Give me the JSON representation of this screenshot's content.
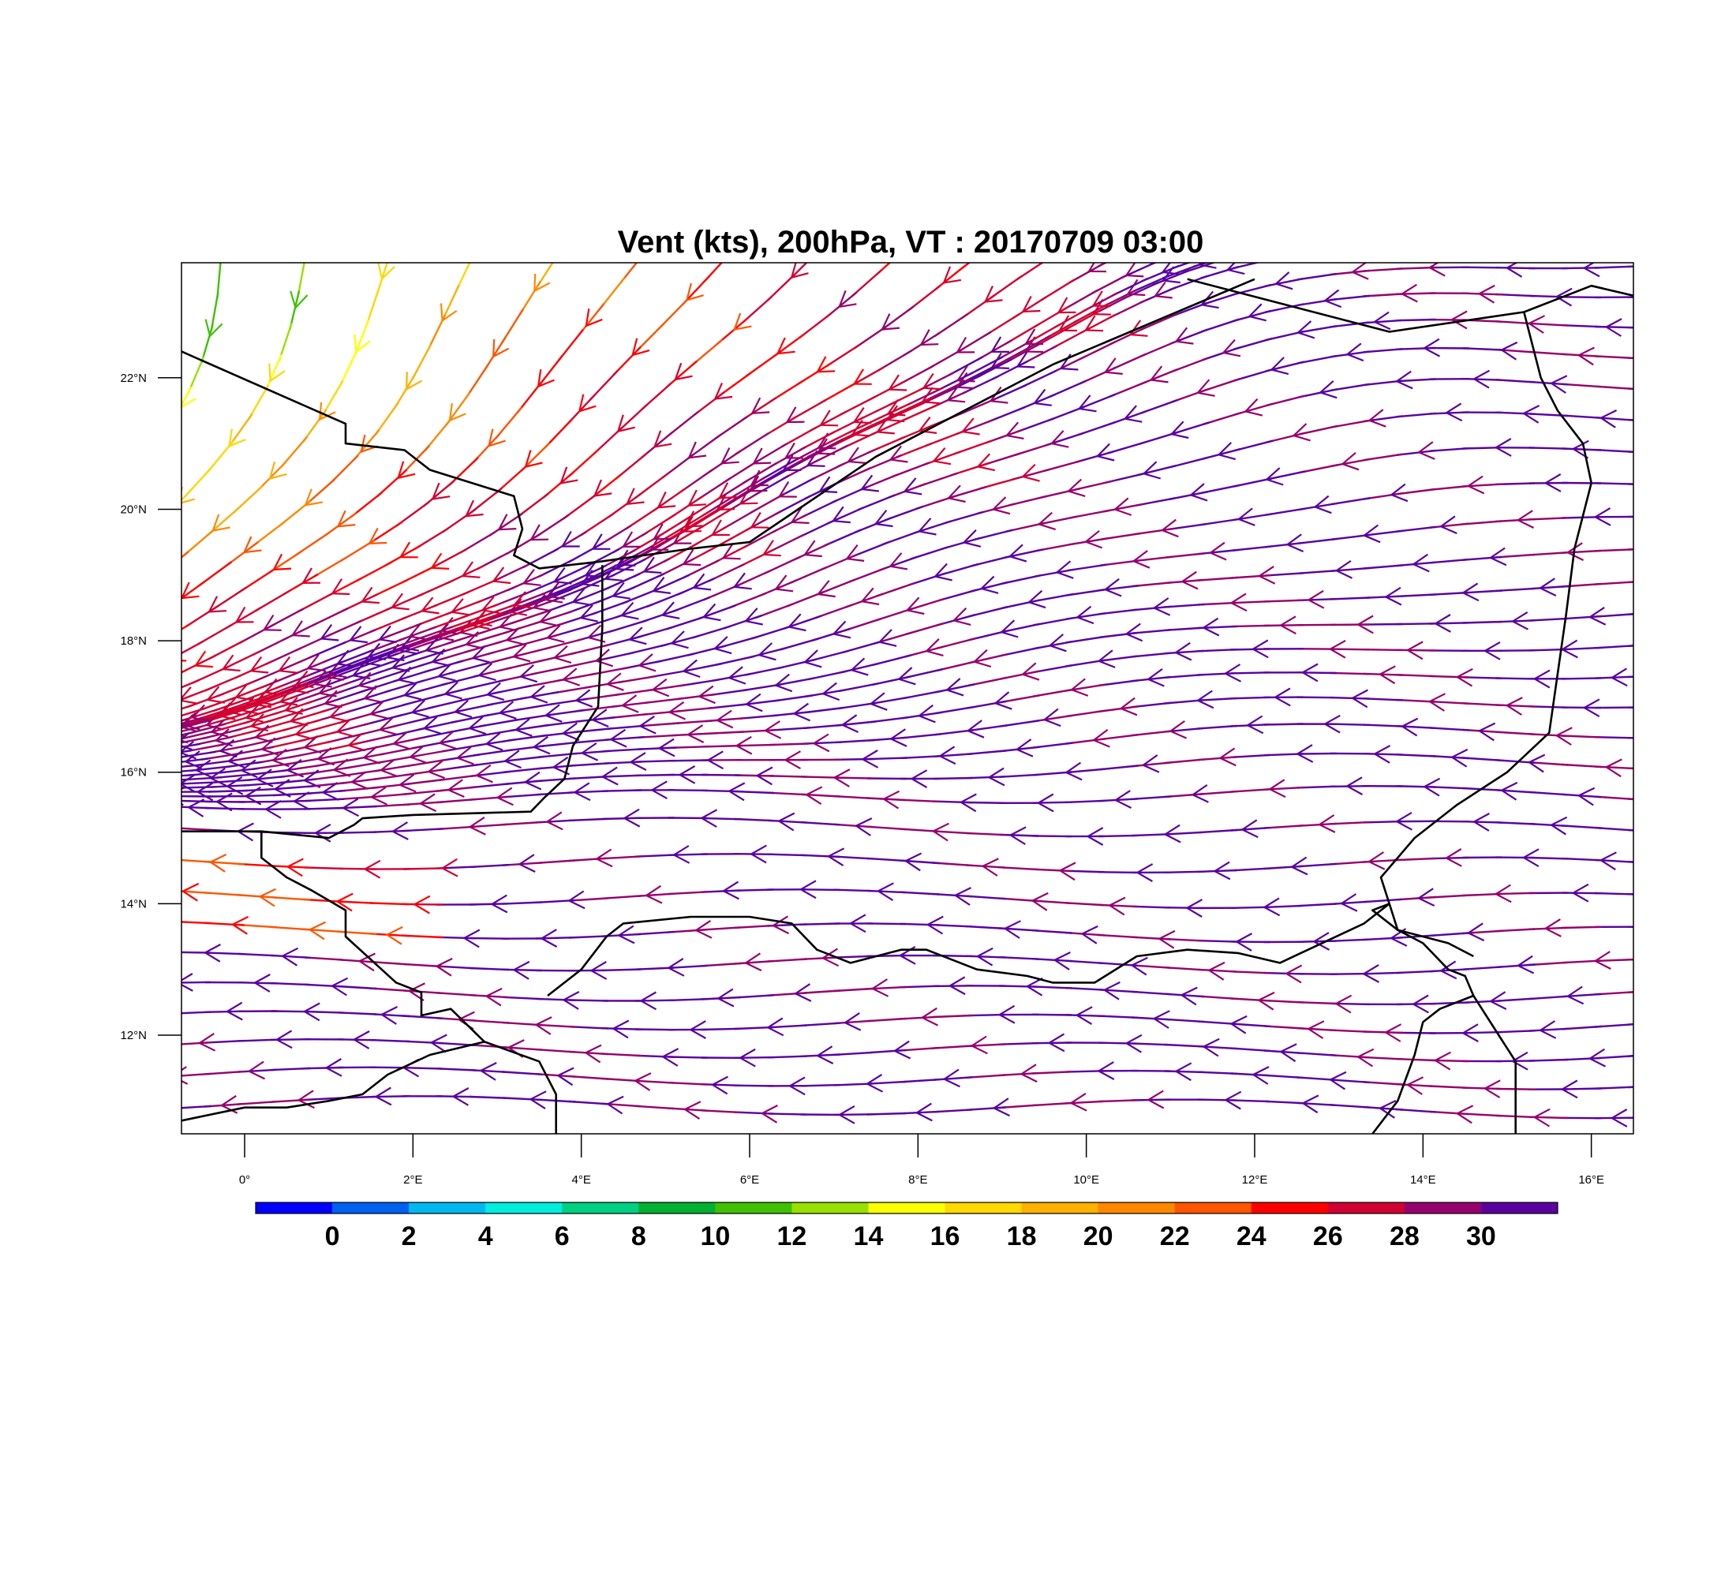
{
  "title": "Vent (kts), 200hPa, VT : 20170709  03:00",
  "map": {
    "lon_range": [
      -0.75,
      16.5
    ],
    "lat_range": [
      10.5,
      23.75
    ],
    "lon_ticks": [
      {
        "value": 0,
        "label": "0°"
      },
      {
        "value": 2,
        "label": "2°E"
      },
      {
        "value": 4,
        "label": "4°E"
      },
      {
        "value": 6,
        "label": "6°E"
      },
      {
        "value": 8,
        "label": "8°E"
      },
      {
        "value": 10,
        "label": "10°E"
      },
      {
        "value": 12,
        "label": "12°E"
      },
      {
        "value": 14,
        "label": "14°E"
      },
      {
        "value": 16,
        "label": "16°E"
      }
    ],
    "lat_ticks": [
      {
        "value": 12,
        "label": "12°N"
      },
      {
        "value": 14,
        "label": "14°N"
      },
      {
        "value": 16,
        "label": "16°N"
      },
      {
        "value": 18,
        "label": "18°N"
      },
      {
        "value": 20,
        "label": "20°N"
      },
      {
        "value": 22,
        "label": "22°N"
      }
    ],
    "borders": [
      [
        [
          -0.75,
          22.4
        ],
        [
          1.2,
          21.3
        ],
        [
          1.2,
          21.0
        ],
        [
          1.9,
          20.9
        ],
        [
          2.2,
          20.6
        ],
        [
          3.2,
          20.2
        ],
        [
          3.3,
          19.7
        ],
        [
          3.2,
          19.3
        ],
        [
          3.5,
          19.1
        ],
        [
          4.2,
          19.2
        ],
        [
          5.3,
          19.4
        ],
        [
          6.0,
          19.5
        ],
        [
          7.5,
          20.8
        ],
        [
          9.6,
          22.2
        ],
        [
          12.0,
          23.5
        ]
      ],
      [
        [
          -0.75,
          15.1
        ],
        [
          0.2,
          15.1
        ],
        [
          1.0,
          15.0
        ],
        [
          1.3,
          15.2
        ],
        [
          1.4,
          15.3
        ],
        [
          2.0,
          15.35
        ],
        [
          3.4,
          15.4
        ],
        [
          3.55,
          15.6
        ],
        [
          3.8,
          15.9
        ],
        [
          3.9,
          16.4
        ],
        [
          4.2,
          17.0
        ],
        [
          4.25,
          18.2
        ],
        [
          4.25,
          19.15
        ]
      ],
      [
        [
          0.2,
          15.1
        ],
        [
          0.2,
          14.7
        ],
        [
          0.5,
          14.4
        ],
        [
          0.8,
          14.2
        ],
        [
          1.2,
          13.9
        ],
        [
          1.2,
          13.5
        ],
        [
          1.8,
          12.8
        ],
        [
          2.1,
          12.65
        ],
        [
          2.1,
          12.3
        ],
        [
          2.45,
          12.4
        ],
        [
          2.85,
          11.9
        ],
        [
          3.5,
          11.6
        ],
        [
          3.7,
          11.1
        ],
        [
          3.7,
          10.5
        ]
      ],
      [
        [
          -0.75,
          10.7
        ],
        [
          0.0,
          10.9
        ],
        [
          0.5,
          10.9
        ],
        [
          1.0,
          11.0
        ],
        [
          1.4,
          11.1
        ],
        [
          1.7,
          11.4
        ],
        [
          2.2,
          11.7
        ],
        [
          2.85,
          11.9
        ]
      ],
      [
        [
          3.6,
          12.6
        ],
        [
          4.0,
          13.0
        ],
        [
          4.3,
          13.5
        ],
        [
          4.5,
          13.7
        ],
        [
          5.3,
          13.8
        ],
        [
          6.0,
          13.8
        ],
        [
          6.5,
          13.7
        ],
        [
          6.8,
          13.3
        ],
        [
          7.2,
          13.1
        ],
        [
          7.8,
          13.3
        ],
        [
          8.1,
          13.3
        ],
        [
          8.7,
          13.0
        ],
        [
          9.3,
          12.9
        ],
        [
          9.6,
          12.8
        ],
        [
          10.1,
          12.8
        ],
        [
          10.6,
          13.2
        ],
        [
          11.2,
          13.3
        ],
        [
          11.8,
          13.25
        ],
        [
          12.3,
          13.1
        ],
        [
          12.8,
          13.4
        ],
        [
          13.3,
          13.7
        ],
        [
          13.6,
          14.0
        ]
      ],
      [
        [
          13.6,
          14.0
        ],
        [
          13.5,
          14.4
        ],
        [
          13.9,
          15.0
        ],
        [
          14.4,
          15.5
        ],
        [
          15.0,
          16.0
        ],
        [
          15.5,
          16.6
        ],
        [
          15.6,
          17.5
        ],
        [
          15.7,
          18.4
        ],
        [
          15.8,
          19.4
        ],
        [
          16.0,
          20.4
        ],
        [
          15.9,
          21.0
        ],
        [
          15.6,
          21.5
        ],
        [
          15.4,
          22.0
        ],
        [
          15.3,
          22.5
        ],
        [
          15.2,
          23.0
        ]
      ],
      [
        [
          11.2,
          23.5
        ],
        [
          13.6,
          22.7
        ],
        [
          15.2,
          23.0
        ],
        [
          16.0,
          23.4
        ],
        [
          16.5,
          23.25
        ]
      ],
      [
        [
          13.6,
          14.0
        ],
        [
          13.4,
          13.9
        ],
        [
          13.7,
          13.6
        ],
        [
          14.0,
          13.4
        ],
        [
          14.3,
          13.0
        ],
        [
          14.5,
          12.9
        ],
        [
          14.6,
          12.6
        ],
        [
          14.2,
          12.4
        ],
        [
          14.0,
          12.2
        ],
        [
          13.9,
          11.7
        ],
        [
          13.7,
          11.0
        ],
        [
          13.4,
          10.5
        ]
      ],
      [
        [
          14.6,
          12.6
        ],
        [
          14.9,
          12.0
        ],
        [
          15.1,
          11.6
        ],
        [
          15.1,
          10.5
        ]
      ],
      [
        [
          13.6,
          14.0
        ],
        [
          13.7,
          13.6
        ],
        [
          14.0,
          13.5
        ],
        [
          14.3,
          13.4
        ],
        [
          14.6,
          13.2
        ]
      ]
    ]
  },
  "colorbar": {
    "labels": [
      "0",
      "2",
      "4",
      "6",
      "8",
      "10",
      "12",
      "14",
      "16",
      "18",
      "20",
      "22",
      "24",
      "26",
      "28",
      "30"
    ],
    "colors": [
      "#0000ff",
      "#0060f0",
      "#00b8f0",
      "#00eedd",
      "#00d080",
      "#00b030",
      "#40c000",
      "#98e000",
      "#ffff00",
      "#ffd800",
      "#ffb000",
      "#ff8800",
      "#ff5500",
      "#ff0000",
      "#d20032",
      "#96006e",
      "#5a00a0"
    ]
  },
  "wind_field": {
    "units": "kts",
    "level": "200hPa"
  }
}
